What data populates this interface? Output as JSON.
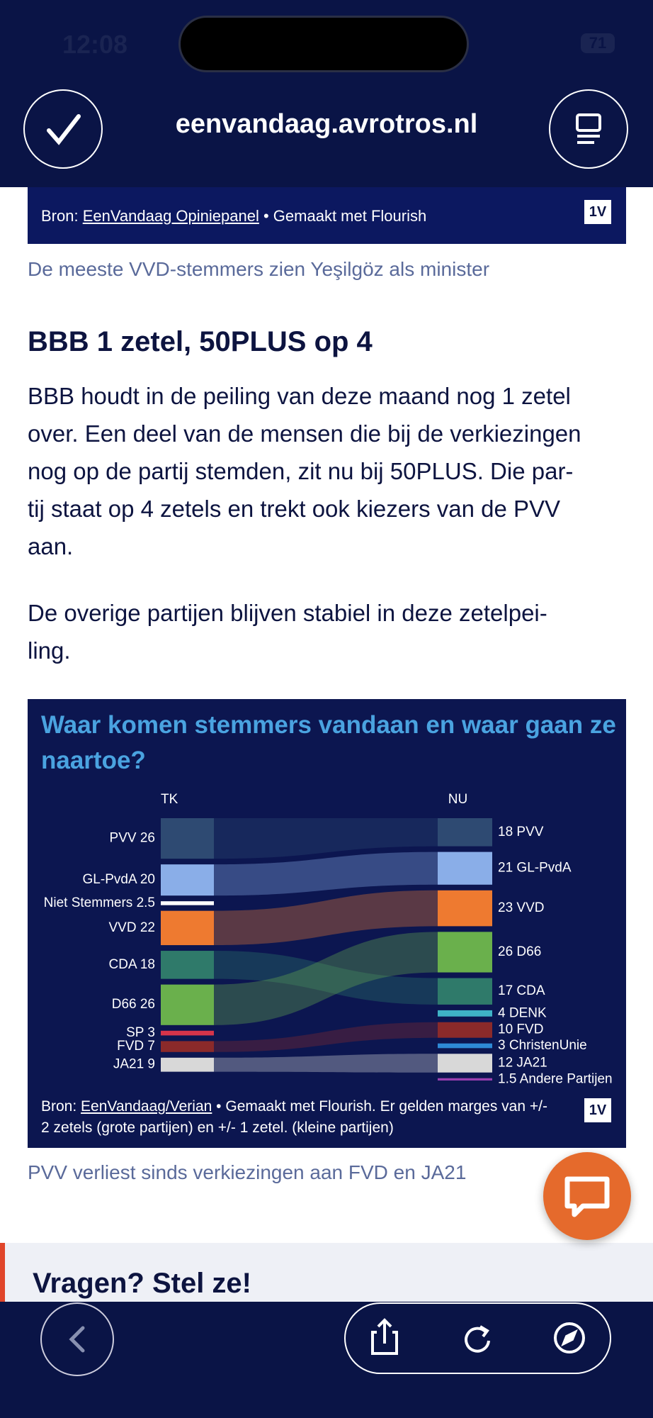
{
  "status_bar": {
    "time": "12:08",
    "battery": "71"
  },
  "browser": {
    "url": "eenvandaag.avrotros.nl"
  },
  "top_chart_footer": {
    "source_prefix": "Bron:",
    "source_link": "EenVandaag Opiniepanel",
    "source_suffix": "• Gemaakt met Flourish",
    "logo": "1V"
  },
  "caption_1": "De meeste VVD-stemmers zien Yeşilgöz als minister",
  "article": {
    "heading": "BBB 1 zetel, 50PLUS op 4",
    "paragraphs": [
      {
        "lines": [
          "BBB houdt in de peiling van deze maand nog 1 zetel",
          "over. Een deel van de mensen die bij de verkiezingen",
          "nog op de partij stemden, zit nu bij 50PLUS. Die par-",
          "tij staat op 4 zetels en trekt ook kiezers van de PVV",
          "aan."
        ]
      },
      {
        "lines": [
          "De overige partijen blijven stabiel in deze zetelpei-",
          "ling."
        ]
      }
    ]
  },
  "chart_data": {
    "type": "sankey",
    "title": "Waar komen stemmers vandaan en waar gaan ze naartoe?",
    "left_header": "TK",
    "right_header": "NU",
    "left_nodes": [
      {
        "name": "PVV",
        "value": 26,
        "color": "#2e4a72"
      },
      {
        "name": "GL-PvdA",
        "value": 20,
        "color": "#8aaee8"
      },
      {
        "name": "Niet Stemmers",
        "value": 2.5,
        "color": "#ffffff"
      },
      {
        "name": "VVD",
        "value": 22,
        "color": "#ee7a30"
      },
      {
        "name": "CDA",
        "value": 18,
        "color": "#2f7a6a"
      },
      {
        "name": "D66",
        "value": 26,
        "color": "#6ab04c"
      },
      {
        "name": "SP",
        "value": 3,
        "color": "#d6344a"
      },
      {
        "name": "FVD",
        "value": 7,
        "color": "#8b2a2a"
      },
      {
        "name": "JA21",
        "value": 9,
        "color": "#d8d8d8"
      }
    ],
    "right_nodes": [
      {
        "name": "PVV",
        "value": 18,
        "color": "#2e4a72"
      },
      {
        "name": "GL-PvdA",
        "value": 21,
        "color": "#8aaee8"
      },
      {
        "name": "VVD",
        "value": 23,
        "color": "#ee7a30"
      },
      {
        "name": "D66",
        "value": 26,
        "color": "#6ab04c"
      },
      {
        "name": "CDA",
        "value": 17,
        "color": "#2f7a6a"
      },
      {
        "name": "DENK",
        "value": 4,
        "color": "#3fb3c6"
      },
      {
        "name": "FVD",
        "value": 10,
        "color": "#8b2a2a"
      },
      {
        "name": "ChristenUnie",
        "value": 3,
        "color": "#2e8ad6"
      },
      {
        "name": "JA21",
        "value": 12,
        "color": "#d8d8d8"
      },
      {
        "name": "Andere Partijen",
        "value": 1.5,
        "color": "#9a3fb0"
      }
    ],
    "source_prefix": "Bron:",
    "source_link": "EenVandaag/Verian",
    "source_text": "• Gemaakt met Flourish. Er gelden marges van +/- 2 zetels (grote partijen) en +/- 1 zetel. (kleine partijen)",
    "logo": "1V"
  },
  "caption_2": "PVV verliest sinds verkiezingen aan FVD en JA21",
  "help": {
    "heading": "Vragen? Stel ze!"
  }
}
